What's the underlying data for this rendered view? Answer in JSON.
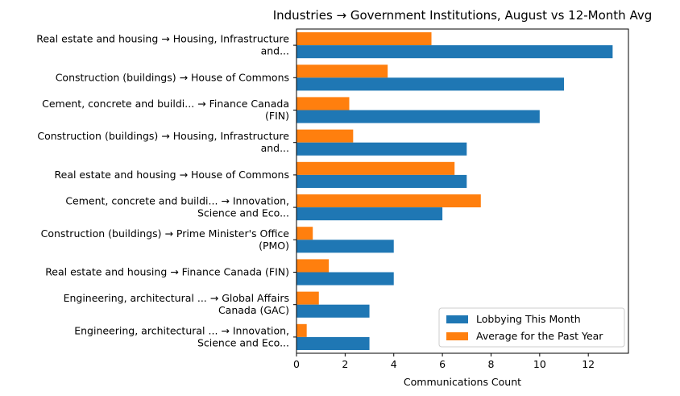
{
  "chart_data": {
    "type": "bar",
    "orientation": "horizontal",
    "title": "Industries → Government Institutions, August vs 12-Month Avg",
    "xlabel": "Communications Count",
    "ylabel": "",
    "xlim": [
      0,
      13.65
    ],
    "xticks": [
      0,
      2,
      4,
      6,
      8,
      10,
      12
    ],
    "grid": false,
    "legend_position": "lower-right",
    "categories": [
      [
        "Real estate and housing → Housing, Infrastructure",
        "and..."
      ],
      [
        "Construction (buildings) → House of Commons"
      ],
      [
        "Cement, concrete and buildi... → Finance Canada",
        "(FIN)"
      ],
      [
        "Construction (buildings) → Housing, Infrastructure",
        "and..."
      ],
      [
        "Real estate and housing → House of Commons"
      ],
      [
        "Cement, concrete and buildi... → Innovation,",
        "Science and Eco..."
      ],
      [
        "Construction (buildings) → Prime Minister's Office",
        "(PMO)"
      ],
      [
        "Real estate and housing → Finance Canada (FIN)"
      ],
      [
        "Engineering, architectural ... → Global Affairs",
        "Canada (GAC)"
      ],
      [
        "Engineering, architectural ... → Innovation,",
        "Science and Eco..."
      ]
    ],
    "series": [
      {
        "name": "Lobbying This Month",
        "color": "#1f77b4",
        "values": [
          13,
          11,
          10,
          7,
          7,
          6,
          4,
          4,
          3,
          3
        ]
      },
      {
        "name": "Average for the Past Year",
        "color": "#ff7f0e",
        "values": [
          5.55,
          3.75,
          2.17,
          2.33,
          6.5,
          7.58,
          0.67,
          1.33,
          0.92,
          0.42
        ]
      }
    ]
  }
}
